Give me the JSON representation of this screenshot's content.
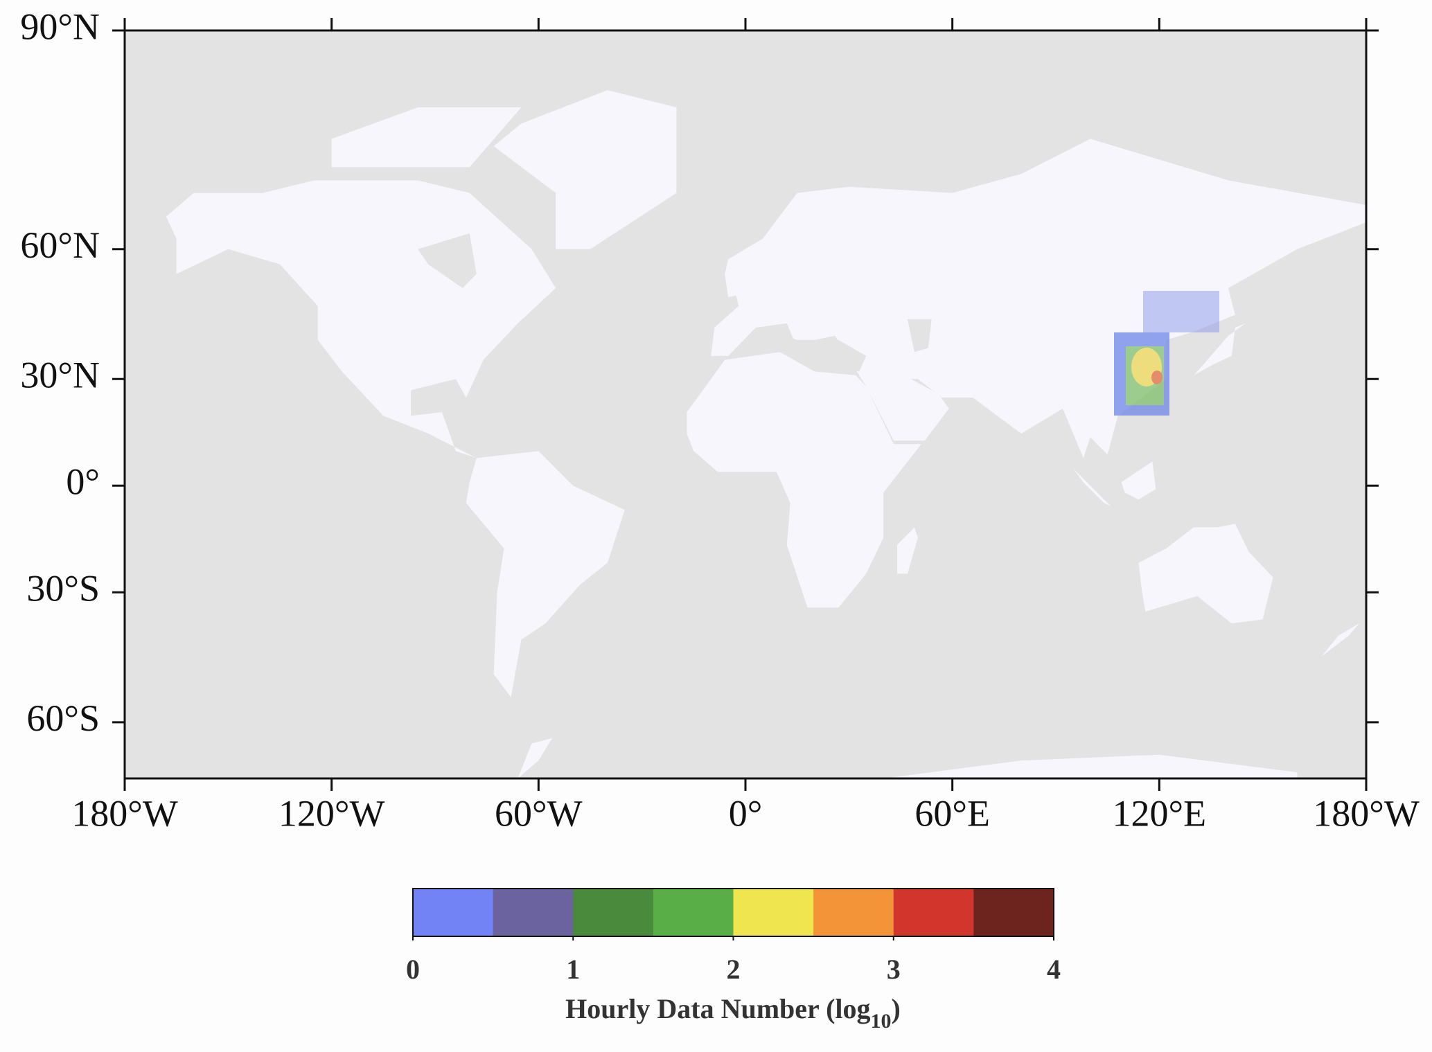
{
  "map": {
    "xlim": [
      -180,
      180
    ],
    "ylim": [
      -70,
      90
    ],
    "xticks": [
      {
        "value": -180,
        "label": "180°W"
      },
      {
        "value": -120,
        "label": "120°W"
      },
      {
        "value": -60,
        "label": "60°W"
      },
      {
        "value": 0,
        "label": "0°"
      },
      {
        "value": 60,
        "label": "60°E"
      },
      {
        "value": 120,
        "label": "120°E"
      },
      {
        "value": 180,
        "label": "180°W"
      }
    ],
    "yticks": [
      {
        "value": 90,
        "label": "90°N"
      },
      {
        "value": 60,
        "label": "60°N"
      },
      {
        "value": 30,
        "label": "30°N"
      },
      {
        "value": 0,
        "label": "0°"
      },
      {
        "value": -30,
        "label": "30°S"
      },
      {
        "value": -60,
        "label": "60°S"
      }
    ],
    "colorbar": {
      "range": [
        0,
        4
      ],
      "ticks": [
        0,
        1,
        2,
        3,
        4
      ],
      "colors": [
        "#7283f6",
        "#6b63a0",
        "#4a8a3d",
        "#5aae47",
        "#efe64f",
        "#f29437",
        "#d1352b",
        "#6d241f"
      ],
      "label_prefix": "Hourly Data Number (log",
      "label_subscript": "10",
      "label_suffix": ")"
    }
  }
}
